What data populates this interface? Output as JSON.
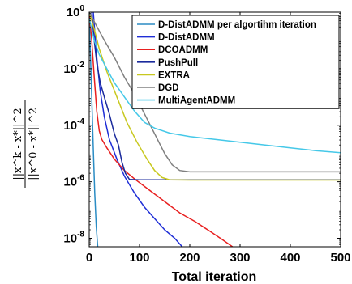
{
  "chart_data": {
    "type": "line",
    "xlabel": "Total iteration",
    "ylabel_numerator": "||x^k - x*||^2",
    "ylabel_denominator": "||x^0 - x*||^2",
    "x_scale": "linear",
    "y_scale": "log",
    "xlim": [
      0,
      500
    ],
    "ylim_log10": [
      -8.3,
      0
    ],
    "x_ticks": [
      "0",
      "100",
      "200",
      "300",
      "400",
      "500"
    ],
    "y_ticks": [
      {
        "base": "10",
        "exp": "0",
        "log10": 0
      },
      {
        "base": "10",
        "exp": "-2",
        "log10": -2
      },
      {
        "base": "10",
        "exp": "-4",
        "log10": -4
      },
      {
        "base": "10",
        "exp": "-6",
        "log10": -6
      },
      {
        "base": "10",
        "exp": "-8",
        "log10": -8
      }
    ],
    "grid": false,
    "legend_placement": "top-right",
    "series": [
      {
        "name": "D-DistADMM per algortihm iteration",
        "color": "#2b8cc4",
        "points": [
          [
            0,
            0
          ],
          [
            2,
            -1.2
          ],
          [
            5,
            -3
          ],
          [
            8,
            -4.8
          ],
          [
            11,
            -6.4
          ],
          [
            14,
            -7.6
          ],
          [
            17,
            -8.3
          ]
        ]
      },
      {
        "name": "D-DistADMM",
        "color": "#1f2ed6",
        "points": [
          [
            8,
            0
          ],
          [
            15,
            -1.6
          ],
          [
            22,
            -2.8
          ],
          [
            30,
            -3.7
          ],
          [
            40,
            -4.5
          ],
          [
            55,
            -5.2
          ],
          [
            70,
            -5.8
          ],
          [
            90,
            -6.4
          ],
          [
            110,
            -6.9
          ],
          [
            130,
            -7.3
          ],
          [
            150,
            -7.7
          ],
          [
            170,
            -8.0
          ],
          [
            185,
            -8.3
          ]
        ]
      },
      {
        "name": "DCOADMM",
        "color": "#e82020",
        "points": [
          [
            0,
            0
          ],
          [
            5,
            -1
          ],
          [
            10,
            -2.3
          ],
          [
            15,
            -3.5
          ],
          [
            20,
            -4.2
          ],
          [
            25,
            -4.5
          ],
          [
            35,
            -4.8
          ],
          [
            50,
            -5.2
          ],
          [
            70,
            -5.6
          ],
          [
            90,
            -5.9
          ],
          [
            120,
            -6.3
          ],
          [
            150,
            -6.7
          ],
          [
            180,
            -7.1
          ],
          [
            210,
            -7.4
          ],
          [
            240,
            -7.75
          ],
          [
            265,
            -8.05
          ],
          [
            285,
            -8.3
          ]
        ]
      },
      {
        "name": "PushPull",
        "color": "#1a2a9c",
        "points": [
          [
            5,
            0
          ],
          [
            10,
            -1
          ],
          [
            15,
            -1.8
          ],
          [
            22,
            -2.5
          ],
          [
            30,
            -3
          ],
          [
            40,
            -3.6
          ],
          [
            50,
            -4.3
          ],
          [
            58,
            -4.7
          ],
          [
            65,
            -5.3
          ],
          [
            72,
            -5.7
          ],
          [
            80,
            -5.92
          ],
          [
            100,
            -5.93
          ],
          [
            200,
            -5.93
          ],
          [
            500,
            -5.93
          ]
        ]
      },
      {
        "name": "EXTRA",
        "color": "#c8c820",
        "points": [
          [
            0,
            0
          ],
          [
            10,
            -0.6
          ],
          [
            20,
            -1.3
          ],
          [
            35,
            -2.1
          ],
          [
            55,
            -3
          ],
          [
            75,
            -3.9
          ],
          [
            95,
            -4.6
          ],
          [
            115,
            -5.2
          ],
          [
            130,
            -5.6
          ],
          [
            145,
            -5.85
          ],
          [
            160,
            -5.93
          ],
          [
            200,
            -5.94
          ],
          [
            500,
            -5.94
          ]
        ]
      },
      {
        "name": "DGD",
        "color": "#808080",
        "points": [
          [
            0,
            0
          ],
          [
            15,
            -0.5
          ],
          [
            30,
            -1.0
          ],
          [
            50,
            -1.6
          ],
          [
            70,
            -2.3
          ],
          [
            90,
            -2.9
          ],
          [
            110,
            -3.6
          ],
          [
            130,
            -4.3
          ],
          [
            150,
            -5.0
          ],
          [
            165,
            -5.4
          ],
          [
            180,
            -5.6
          ],
          [
            200,
            -5.65
          ],
          [
            500,
            -5.65
          ]
        ]
      },
      {
        "name": "MultiAgentADMM",
        "color": "#45c8e8",
        "points": [
          [
            0,
            -0.2
          ],
          [
            10,
            -1
          ],
          [
            20,
            -1.5
          ],
          [
            35,
            -2
          ],
          [
            50,
            -2.5
          ],
          [
            70,
            -3
          ],
          [
            90,
            -3.5
          ],
          [
            110,
            -3.9
          ],
          [
            130,
            -4.1
          ],
          [
            160,
            -4.28
          ],
          [
            200,
            -4.4
          ],
          [
            250,
            -4.5
          ],
          [
            300,
            -4.6
          ],
          [
            350,
            -4.7
          ],
          [
            400,
            -4.8
          ],
          [
            450,
            -4.9
          ],
          [
            500,
            -4.97
          ]
        ]
      }
    ]
  }
}
